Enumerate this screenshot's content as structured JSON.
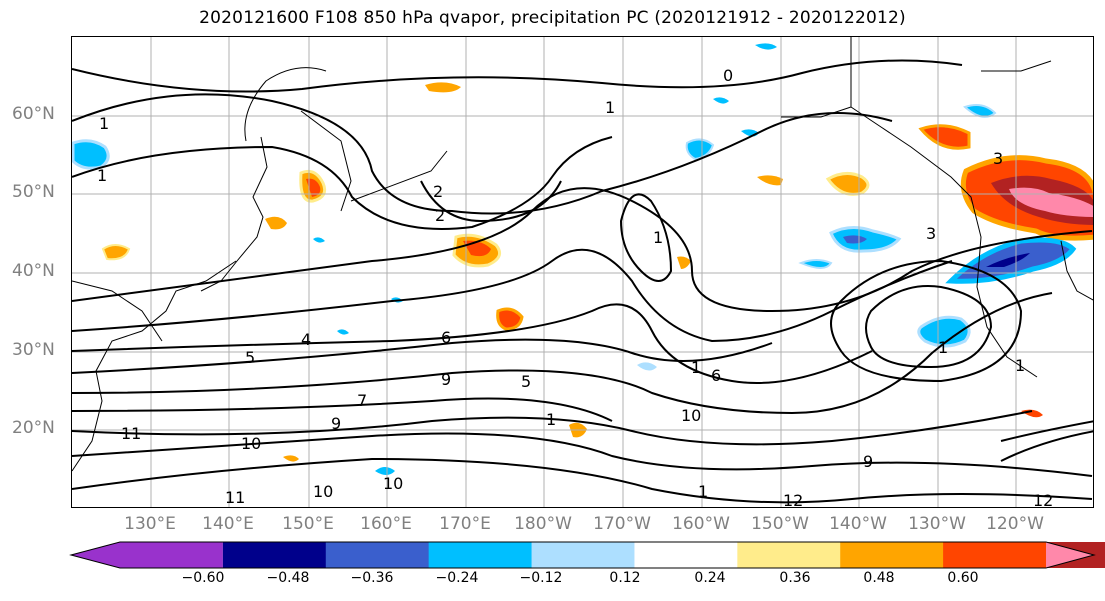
{
  "title": "2020121600 F108 850 hPa qvapor, precipitation PC (2020121912 - 2020122012)",
  "map": {
    "lat_labels": [
      "60°N",
      "50°N",
      "40°N",
      "30°N",
      "20°N"
    ],
    "lon_labels": [
      "130°E",
      "140°E",
      "150°E",
      "160°E",
      "170°E",
      "180°W",
      "170°W",
      "160°W",
      "150°W",
      "140°W",
      "130°W",
      "120°W"
    ],
    "extent": {
      "lon_min": 120,
      "lon_max": 250,
      "lat_min": 10,
      "lat_max": 70
    },
    "grid": true,
    "contour_labels": [
      "0",
      "1",
      "1",
      "1",
      "1",
      "1",
      "1",
      "1",
      "1",
      "2",
      "2",
      "3",
      "3",
      "4",
      "5",
      "5",
      "6",
      "6",
      "7",
      "9",
      "9",
      "9",
      "10",
      "10",
      "10",
      "10",
      "11",
      "11",
      "12",
      "12",
      "1"
    ],
    "contour_color": "#000000",
    "coastline_color": "#000000"
  },
  "colorbar": {
    "ticks": [
      "−0.60",
      "−0.48",
      "−0.36",
      "−0.24",
      "−0.12",
      "0.12",
      "0.24",
      "0.36",
      "0.48",
      "0.60"
    ],
    "colors": [
      "#9932CC",
      "#00008B",
      "#3A5FCD",
      "#00BFFF",
      "#ADDFFF",
      "#FFFFFF",
      "#FFEC8B",
      "#FFA500",
      "#FF4500",
      "#B22222",
      "#FF88AA"
    ]
  }
}
